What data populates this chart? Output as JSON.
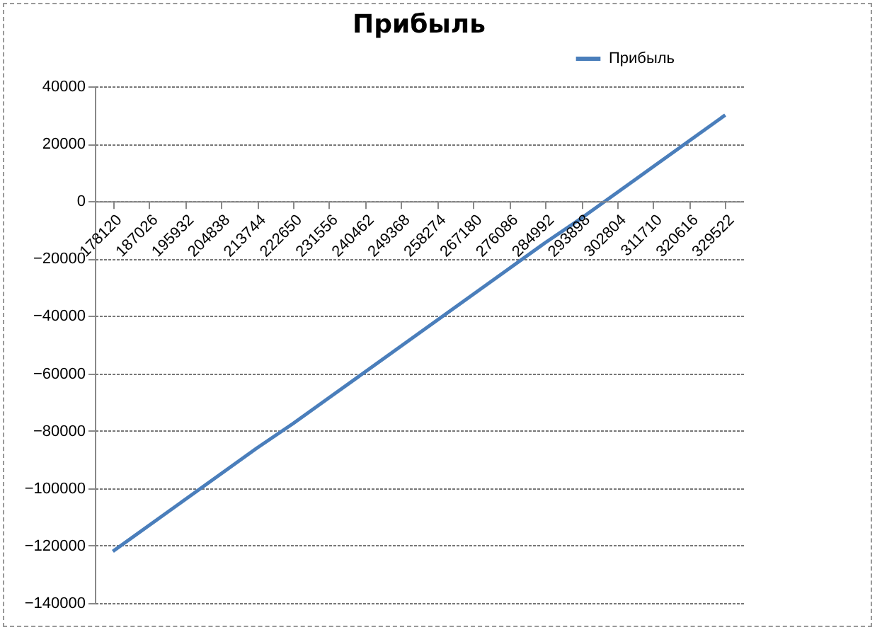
{
  "chart_data": {
    "type": "line",
    "title": "Прибыль",
    "categories": [
      "178120",
      "187026",
      "195932",
      "204838",
      "213744",
      "222650",
      "231556",
      "240462",
      "249368",
      "258274",
      "267180",
      "276086",
      "284992",
      "293898",
      "302804",
      "311710",
      "320616",
      "329522"
    ],
    "series": [
      {
        "name": "Прибыль",
        "color": "#4a7ebb",
        "values": [
          -122000,
          -113000,
          -104000,
          -95000,
          -86000,
          -77500,
          -68500,
          -59500,
          -50500,
          -41500,
          -32500,
          -23500,
          -14500,
          -6000,
          3000,
          12000,
          21000,
          30000
        ]
      }
    ],
    "ylim": [
      -140000,
      40000
    ],
    "yticks": [
      -140000,
      -120000,
      -100000,
      -80000,
      -60000,
      -40000,
      -20000,
      0,
      20000,
      40000
    ],
    "grid": "y",
    "legend": "top right",
    "marker": "none",
    "line_style": "solid"
  }
}
